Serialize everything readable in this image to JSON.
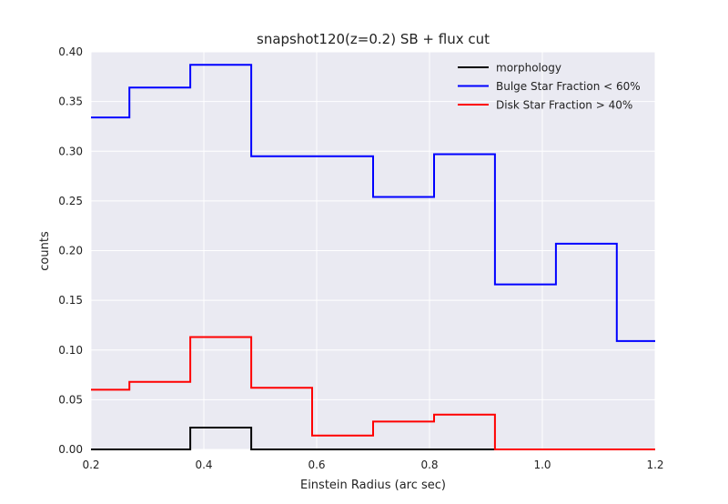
{
  "chart_data": {
    "type": "line",
    "style": "step-histogram",
    "title": "snapshot120(z=0.2) SB + flux cut",
    "xlabel": "Einstein Radius (arc sec)",
    "ylabel": "counts",
    "xlim": [
      0.2,
      1.2
    ],
    "ylim": [
      0.0,
      0.4
    ],
    "xticks": [
      0.2,
      0.4,
      0.6,
      0.8,
      1.0,
      1.2
    ],
    "xtick_labels": [
      "0.2",
      "0.4",
      "0.6",
      "0.8",
      "1.0",
      "1.2"
    ],
    "yticks": [
      0.0,
      0.05,
      0.1,
      0.15,
      0.2,
      0.25,
      0.3,
      0.35,
      0.4
    ],
    "ytick_labels": [
      "0.00",
      "0.05",
      "0.10",
      "0.15",
      "0.20",
      "0.25",
      "0.30",
      "0.35",
      "0.40"
    ],
    "grid": true,
    "background_color": "#EAEAF2",
    "grid_color": "#FFFFFF",
    "legend_position": "top-right",
    "bin_edges": [
      0.2,
      0.268,
      0.376,
      0.484,
      0.592,
      0.7,
      0.808,
      0.916,
      1.024,
      1.132,
      1.2
    ],
    "series": [
      {
        "name": "morphology",
        "color": "#000000",
        "values": [
          0.0,
          0.0,
          0.022,
          0.0,
          0.0,
          0.0,
          0.0,
          0.0,
          0.0,
          0.0
        ]
      },
      {
        "name": "Bulge Star Fraction < 60%",
        "color": "#0000FF",
        "values": [
          0.334,
          0.364,
          0.387,
          0.295,
          0.295,
          0.254,
          0.297,
          0.166,
          0.207,
          0.109
        ]
      },
      {
        "name": "Disk Star Fraction > 40%",
        "color": "#FF0000",
        "values": [
          0.06,
          0.068,
          0.113,
          0.062,
          0.014,
          0.028,
          0.035,
          0.0,
          0.0,
          0.0
        ]
      }
    ]
  }
}
